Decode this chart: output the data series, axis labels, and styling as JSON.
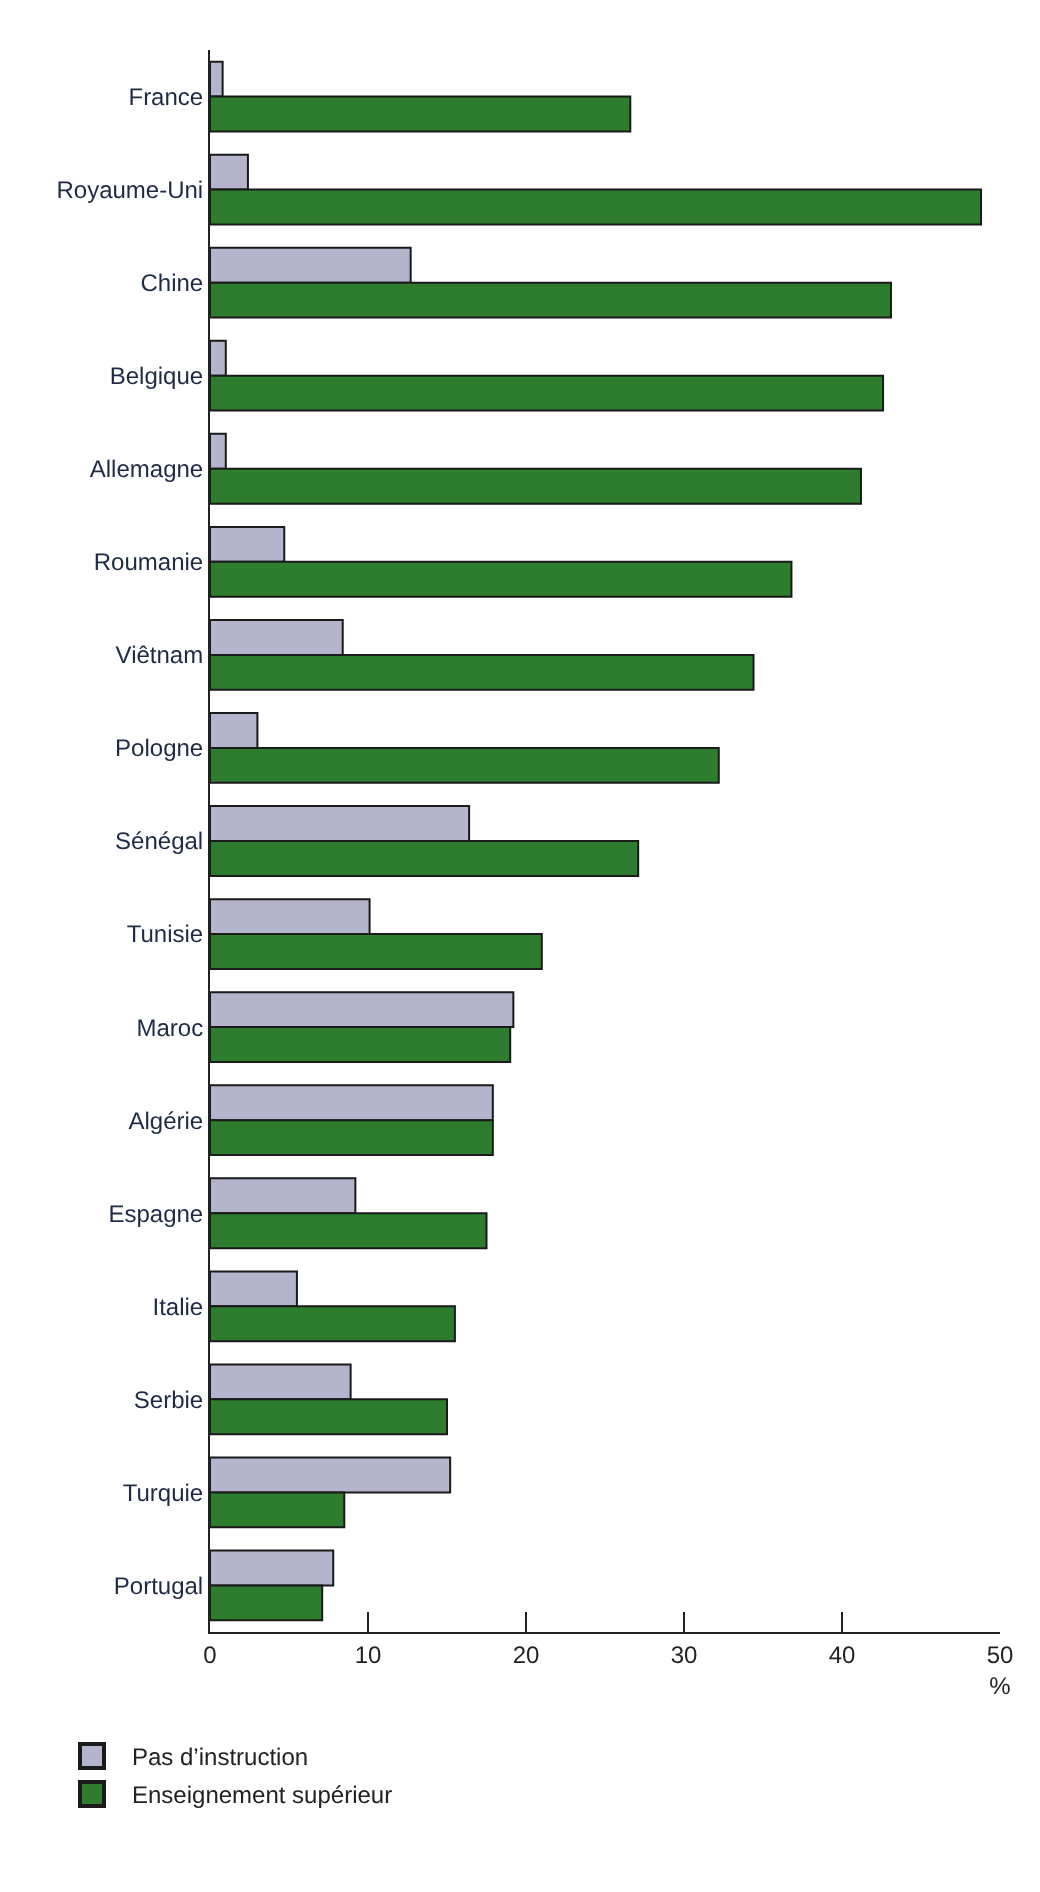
{
  "chart_data": {
    "type": "bar",
    "orientation": "horizontal",
    "categories": [
      "France",
      "Royaume-Uni",
      "Chine",
      "Belgique",
      "Allemagne",
      "Roumanie",
      "Viêtnam",
      "Pologne",
      "Sénégal",
      "Tunisie",
      "Maroc",
      "Algérie",
      "Espagne",
      "Italie",
      "Serbie",
      "Turquie",
      "Portugal"
    ],
    "series": [
      {
        "name": "Pas d’instruction",
        "color": "#b4b4cc",
        "values": [
          0.8,
          2.4,
          12.7,
          1.0,
          1.0,
          4.7,
          8.4,
          3.0,
          16.4,
          10.1,
          19.2,
          17.9,
          9.2,
          5.5,
          8.9,
          15.2,
          7.8
        ]
      },
      {
        "name": "Enseignement supérieur",
        "color": "#2e7d2e",
        "values": [
          26.6,
          48.8,
          43.1,
          42.6,
          41.2,
          36.8,
          34.4,
          32.2,
          27.1,
          21.0,
          19.0,
          17.9,
          17.5,
          15.5,
          15.0,
          8.5,
          7.1
        ]
      }
    ],
    "xlim": [
      0,
      50
    ],
    "xticks": [
      0,
      10,
      20,
      30,
      40,
      {
        "value": 50,
        "label": "50\n%"
      }
    ],
    "legend": "bottom left"
  }
}
